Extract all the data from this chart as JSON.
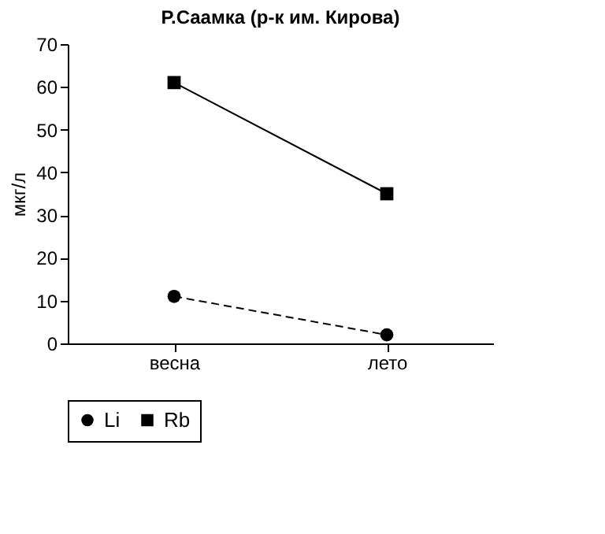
{
  "chart_data": {
    "type": "line",
    "title": "Р.Саамка (р-к им. Кирова)",
    "ylabel": "мкг/л",
    "categories": [
      "весна",
      "лето"
    ],
    "series": [
      {
        "name": "Li",
        "color": "#000000",
        "values": [
          11,
          2
        ],
        "marker": "circle",
        "line_style": "dashed"
      },
      {
        "name": "Rb",
        "color": "#000000",
        "values": [
          61,
          35
        ],
        "marker": "square",
        "line_style": "solid"
      }
    ],
    "ylim": [
      0,
      70
    ],
    "yticks": [
      0,
      10,
      20,
      30,
      40,
      50,
      60,
      70
    ],
    "grid": false,
    "legend": "bottom"
  }
}
